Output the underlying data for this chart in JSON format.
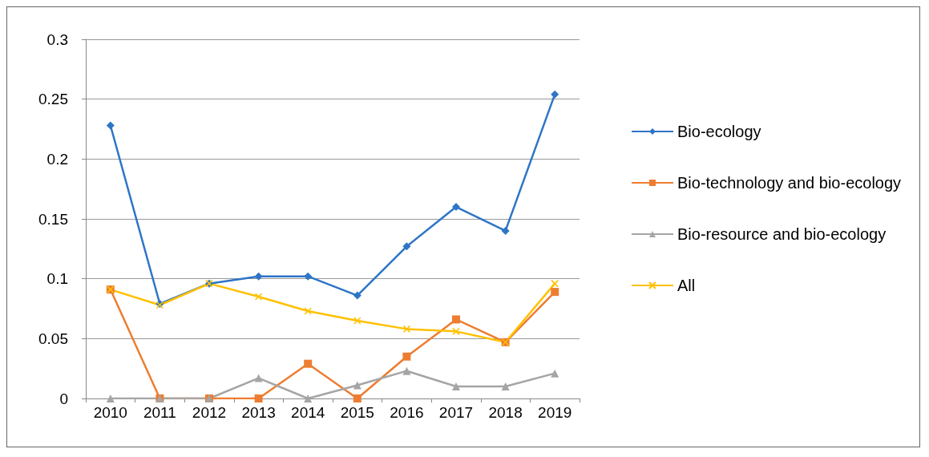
{
  "chart_data": {
    "type": "line",
    "categories": [
      "2010",
      "2011",
      "2012",
      "2013",
      "2014",
      "2015",
      "2016",
      "2017",
      "2018",
      "2019"
    ],
    "series": [
      {
        "name": "Bio-ecology",
        "color": "#2e75c6",
        "marker": "diamond",
        "values": [
          0.228,
          0.079,
          0.096,
          0.102,
          0.102,
          0.086,
          0.127,
          0.16,
          0.14,
          0.254
        ]
      },
      {
        "name": "Bio-technology and bio-ecology",
        "color": "#ed7d31",
        "marker": "square",
        "values": [
          0.091,
          0,
          0,
          0,
          0.029,
          0,
          0.035,
          0.066,
          0.047,
          0.089
        ]
      },
      {
        "name": "Bio-resource and bio-ecology",
        "color": "#a5a5a5",
        "marker": "triangle",
        "values": [
          0,
          0,
          0,
          0.017,
          0,
          0.011,
          0.023,
          0.01,
          0.01,
          0.021
        ]
      },
      {
        "name": "All",
        "color": "#ffc000",
        "marker": "cross",
        "values": [
          0.091,
          0.078,
          0.096,
          0.085,
          0.073,
          0.065,
          0.058,
          0.056,
          0.047,
          0.096
        ]
      }
    ],
    "ylim": [
      0,
      0.3
    ],
    "yticks": [
      0,
      0.05,
      0.1,
      0.15,
      0.2,
      0.25,
      0.3
    ],
    "grid": "y",
    "legend": "right",
    "line_style": "solid"
  }
}
